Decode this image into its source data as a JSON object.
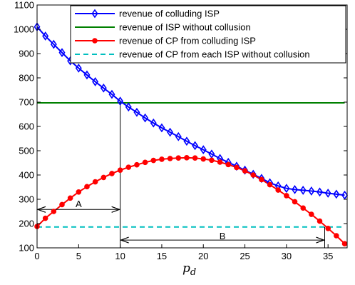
{
  "chart_data": {
    "type": "line",
    "xlabel_main": "p",
    "xlabel_sub": "d",
    "xlim": [
      0,
      37.3
    ],
    "ylim": [
      100,
      1100
    ],
    "x_ticks": [
      0,
      5,
      10,
      15,
      20,
      25,
      30,
      35
    ],
    "y_ticks": [
      100,
      200,
      300,
      400,
      500,
      600,
      700,
      800,
      900,
      1000,
      1100
    ],
    "legend_position": "top-right",
    "grid": false,
    "x": [
      0,
      1,
      2,
      3,
      4,
      5,
      6,
      7,
      8,
      9,
      10,
      11,
      12,
      13,
      14,
      15,
      16,
      17,
      18,
      19,
      20,
      21,
      22,
      23,
      24,
      25,
      26,
      27,
      28,
      29,
      30,
      31,
      32,
      33,
      34,
      35,
      36,
      37
    ],
    "series": [
      {
        "name": "revenue of colluding ISP",
        "color": "#0000ff",
        "style": "solid",
        "marker": "diamond",
        "values": [
          1010,
          972,
          938,
          904,
          870,
          840,
          812,
          784,
          758,
          732,
          704,
          680,
          658,
          635,
          614,
          594,
          576,
          558,
          539,
          521,
          504,
          486,
          468,
          452,
          436,
          420,
          403,
          386,
          368,
          355,
          345,
          340,
          337,
          334,
          330,
          325,
          321,
          317
        ]
      },
      {
        "name": "revenue of ISP without collusion",
        "color": "#008000",
        "style": "solid",
        "marker": "none",
        "values": [
          697,
          697,
          697,
          697,
          697,
          697,
          697,
          697,
          697,
          697,
          697,
          697,
          697,
          697,
          697,
          697,
          697,
          697,
          697,
          697,
          697,
          697,
          697,
          697,
          697,
          697,
          697,
          697,
          697,
          697,
          697,
          697,
          697,
          697,
          697,
          697,
          697,
          697
        ]
      },
      {
        "name": "revenue of CP from colluding ISP",
        "color": "#ff0000",
        "style": "solid",
        "marker": "circle",
        "values": [
          188,
          222,
          250,
          278,
          305,
          330,
          352,
          372,
          390,
          406,
          420,
          432,
          442,
          452,
          460,
          465,
          468,
          470,
          471,
          470,
          466,
          461,
          453,
          443,
          431,
          417,
          400,
          381,
          360,
          338,
          315,
          290,
          264,
          238,
          210,
          180,
          150,
          117
        ]
      },
      {
        "name": "revenue of CP from each ISP without collusion",
        "color": "#00bfbf",
        "style": "dashed",
        "marker": "none",
        "values": [
          186,
          186,
          186,
          186,
          186,
          186,
          186,
          186,
          186,
          186,
          186,
          186,
          186,
          186,
          186,
          186,
          186,
          186,
          186,
          186,
          186,
          186,
          186,
          186,
          186,
          186,
          186,
          186,
          186,
          186,
          186,
          186,
          186,
          186,
          186,
          186,
          186,
          186
        ]
      }
    ],
    "annotations": [
      {
        "label": "A",
        "x_range": [
          0,
          10
        ],
        "y": 258,
        "label_y": 282
      },
      {
        "label": "B",
        "x_range": [
          10,
          34.6
        ],
        "y": 132,
        "label_y": 150
      }
    ],
    "reference_lines": [
      {
        "x": 10,
        "y_from": 100,
        "y_to": 697
      },
      {
        "x": 34.6,
        "y_from": 100,
        "y_to": 186
      }
    ]
  }
}
